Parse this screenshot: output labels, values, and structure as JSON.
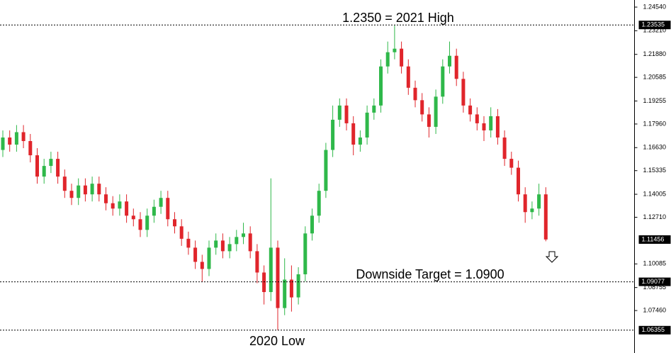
{
  "chart_data": {
    "type": "candlestick",
    "up_color": "#2fb84a",
    "down_color": "#e0252b",
    "ylim": [
      1.0507,
      1.2494
    ],
    "yticks": [
      {
        "value": 1.2454,
        "label": "1.24540"
      },
      {
        "value": 1.2321,
        "label": "1.23210"
      },
      {
        "value": 1.2188,
        "label": "1.21880"
      },
      {
        "value": 1.20585,
        "label": "1.20585"
      },
      {
        "value": 1.19255,
        "label": "1.19255"
      },
      {
        "value": 1.1796,
        "label": "1.17960"
      },
      {
        "value": 1.1663,
        "label": "1.16630"
      },
      {
        "value": 1.15335,
        "label": "1.15335"
      },
      {
        "value": 1.14005,
        "label": "1.14005"
      },
      {
        "value": 1.1271,
        "label": "1.12710"
      },
      {
        "value": 1.10085,
        "label": "1.10085"
      },
      {
        "value": 1.08755,
        "label": "1.08755"
      },
      {
        "value": 1.0746,
        "label": "1.07460"
      }
    ],
    "levels": [
      {
        "value": 1.23535,
        "label": "1.23535"
      },
      {
        "value": 1.09077,
        "label": "1.09077"
      },
      {
        "value": 1.06355,
        "label": "1.06355"
      }
    ],
    "current_price": {
      "value": 1.11456,
      "label": "1.11456"
    },
    "annotations": [
      "1.2350 = 2021 High",
      "Downside Target = 1.0900",
      "2020 Low"
    ],
    "open": [
      1.165,
      1.172,
      1.168,
      1.175,
      1.17,
      1.162,
      1.15,
      1.156,
      1.16,
      1.15,
      1.142,
      1.138,
      1.145,
      1.14,
      1.146,
      1.14,
      1.135,
      1.132,
      1.136,
      1.128,
      1.126,
      1.12,
      1.128,
      1.133,
      1.138,
      1.126,
      1.122,
      1.115,
      1.11,
      1.102,
      1.098,
      1.11,
      1.114,
      1.108,
      1.112,
      1.116,
      1.118,
      1.108,
      1.096,
      1.085,
      1.11,
      1.076,
      1.092,
      1.082,
      1.095,
      1.118,
      1.128,
      1.142,
      1.165,
      1.182,
      1.19,
      1.18,
      1.168,
      1.172,
      1.186,
      1.19,
      1.212,
      1.22,
      1.222,
      1.212,
      1.2,
      1.193,
      1.185,
      1.178,
      1.195,
      1.212,
      1.218,
      1.205,
      1.19,
      1.185,
      1.18,
      1.176,
      1.184,
      1.172,
      1.16,
      1.155,
      1.14,
      1.13,
      1.132,
      1.14
    ],
    "high": [
      1.176,
      1.176,
      1.179,
      1.179,
      1.174,
      1.166,
      1.16,
      1.164,
      1.164,
      1.154,
      1.146,
      1.149,
      1.149,
      1.15,
      1.15,
      1.144,
      1.139,
      1.14,
      1.14,
      1.132,
      1.13,
      1.132,
      1.137,
      1.142,
      1.142,
      1.13,
      1.126,
      1.119,
      1.114,
      1.106,
      1.114,
      1.118,
      1.118,
      1.116,
      1.12,
      1.124,
      1.122,
      1.112,
      1.1,
      1.149,
      1.114,
      1.104,
      1.1,
      1.099,
      1.122,
      1.132,
      1.146,
      1.169,
      1.19,
      1.194,
      1.194,
      1.184,
      1.176,
      1.19,
      1.194,
      1.216,
      1.226,
      1.235,
      1.226,
      1.216,
      1.204,
      1.197,
      1.189,
      1.199,
      1.216,
      1.226,
      1.222,
      1.209,
      1.194,
      1.189,
      1.184,
      1.189,
      1.188,
      1.176,
      1.164,
      1.159,
      1.144,
      1.136,
      1.146,
      1.144
    ],
    "low": [
      1.161,
      1.164,
      1.164,
      1.166,
      1.158,
      1.146,
      1.146,
      1.152,
      1.146,
      1.138,
      1.134,
      1.134,
      1.136,
      1.136,
      1.136,
      1.131,
      1.128,
      1.128,
      1.124,
      1.122,
      1.116,
      1.116,
      1.124,
      1.129,
      1.122,
      1.118,
      1.111,
      1.106,
      1.098,
      1.0908,
      1.094,
      1.106,
      1.104,
      1.104,
      1.108,
      1.112,
      1.104,
      1.09,
      1.078,
      1.08,
      1.0635,
      1.072,
      1.074,
      1.078,
      1.091,
      1.114,
      1.124,
      1.138,
      1.161,
      1.178,
      1.176,
      1.162,
      1.164,
      1.168,
      1.182,
      1.186,
      1.208,
      1.216,
      1.208,
      1.196,
      1.189,
      1.181,
      1.172,
      1.174,
      1.191,
      1.208,
      1.201,
      1.186,
      1.181,
      1.176,
      1.17,
      1.172,
      1.168,
      1.156,
      1.151,
      1.136,
      1.124,
      1.126,
      1.128,
      1.1136
    ],
    "close": [
      1.172,
      1.168,
      1.175,
      1.17,
      1.162,
      1.15,
      1.156,
      1.16,
      1.15,
      1.142,
      1.138,
      1.145,
      1.14,
      1.146,
      1.14,
      1.135,
      1.132,
      1.136,
      1.128,
      1.126,
      1.12,
      1.128,
      1.133,
      1.138,
      1.126,
      1.122,
      1.115,
      1.11,
      1.102,
      1.098,
      1.11,
      1.114,
      1.108,
      1.112,
      1.116,
      1.118,
      1.108,
      1.096,
      1.085,
      1.11,
      1.076,
      1.092,
      1.082,
      1.095,
      1.118,
      1.128,
      1.142,
      1.165,
      1.182,
      1.19,
      1.18,
      1.168,
      1.172,
      1.186,
      1.19,
      1.212,
      1.22,
      1.222,
      1.212,
      1.2,
      1.193,
      1.185,
      1.178,
      1.195,
      1.212,
      1.218,
      1.205,
      1.19,
      1.185,
      1.18,
      1.176,
      1.184,
      1.172,
      1.16,
      1.155,
      1.14,
      1.13,
      1.132,
      1.14,
      1.1146
    ]
  }
}
